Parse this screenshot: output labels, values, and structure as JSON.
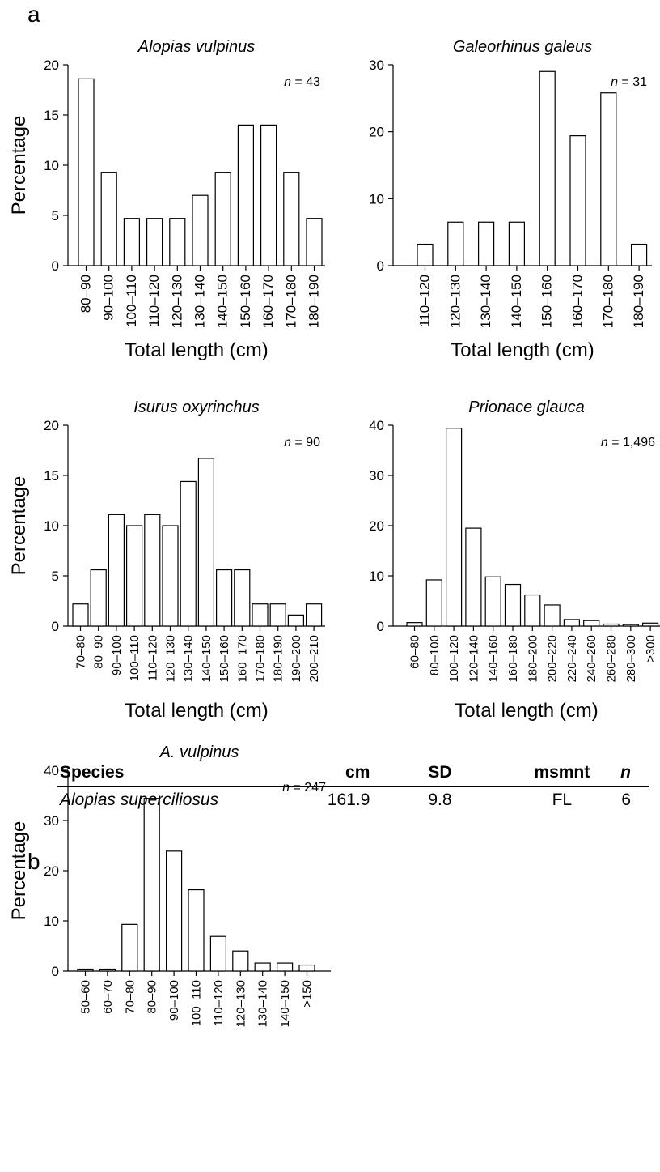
{
  "figure": {
    "panel_a_label": "a",
    "panel_b_label": "b"
  },
  "chart_data": [
    {
      "id": "chart-a1",
      "panel": "a",
      "type": "bar",
      "title": "Alopias vulpinus",
      "n_label": "n = 43",
      "xlabel": "Total length (cm)",
      "ylabel": "Percentage",
      "ylim": [
        0,
        20
      ],
      "yticks": [
        0,
        5,
        10,
        15,
        20
      ],
      "categories": [
        "80–90",
        "90–100",
        "100–110",
        "110–120",
        "120–130",
        "130–140",
        "140–150",
        "150–160",
        "160–170",
        "170–180",
        "180–190"
      ],
      "values": [
        18.6,
        9.3,
        4.7,
        4.7,
        4.7,
        7.0,
        9.3,
        14.0,
        14.0,
        9.3,
        4.7
      ]
    },
    {
      "id": "chart-a2",
      "panel": "a",
      "type": "bar",
      "title": "Galeorhinus galeus",
      "n_label": "n = 31",
      "xlabel": "Total length (cm)",
      "ylabel": "",
      "ylim": [
        0,
        30
      ],
      "yticks": [
        0,
        10,
        20,
        30
      ],
      "categories": [
        "110–120",
        "120–130",
        "130–140",
        "140–150",
        "150–160",
        "160–170",
        "170–180",
        "180–190"
      ],
      "values": [
        3.2,
        6.5,
        6.5,
        6.5,
        29.0,
        19.4,
        25.8,
        3.2
      ]
    },
    {
      "id": "chart-a3",
      "panel": "a",
      "type": "bar",
      "title": "Isurus oxyrinchus",
      "n_label": "n = 90",
      "xlabel": "Total length (cm)",
      "ylabel": "Percentage",
      "ylim": [
        0,
        20
      ],
      "yticks": [
        0,
        5,
        10,
        15,
        20
      ],
      "categories": [
        "70–80",
        "80–90",
        "90–100",
        "100–110",
        "110–120",
        "120–130",
        "130–140",
        "140–150",
        "150–160",
        "160–170",
        "170–180",
        "180–190",
        "190–200",
        "200–210"
      ],
      "values": [
        2.2,
        5.6,
        11.1,
        10.0,
        11.1,
        10.0,
        14.4,
        16.7,
        5.6,
        5.6,
        2.2,
        2.2,
        1.1,
        2.2
      ]
    },
    {
      "id": "chart-a4",
      "panel": "a",
      "type": "bar",
      "title": "Prionace glauca",
      "n_label": "n = 1,496",
      "xlabel": "Total length (cm)",
      "ylabel": "",
      "ylim": [
        0,
        40
      ],
      "yticks": [
        0,
        10,
        20,
        30,
        40
      ],
      "categories": [
        "60–80",
        "80–100",
        "100–120",
        "120–140",
        "140–160",
        "160–180",
        "180–200",
        "200–220",
        "220–240",
        "240–260",
        "260–280",
        "280–300",
        ">300"
      ],
      "values": [
        0.7,
        9.2,
        39.4,
        19.5,
        9.8,
        8.3,
        6.2,
        4.2,
        1.3,
        1.1,
        0.4,
        0.3,
        0.6
      ]
    },
    {
      "id": "chart-b1",
      "panel": "b",
      "type": "bar",
      "title": "A. vulpinus",
      "n_label": "n = 247",
      "xlabel": "",
      "ylabel": "Percentage",
      "ylim": [
        0,
        40
      ],
      "yticks": [
        0,
        10,
        20,
        30,
        40
      ],
      "categories": [
        "50–60",
        "60–70",
        "70–80",
        "80–90",
        "90–100",
        "100–110",
        "110–120",
        "120–130",
        "130–140",
        "140–150",
        ">150"
      ],
      "values": [
        0.4,
        0.4,
        9.3,
        34.4,
        23.9,
        16.2,
        6.9,
        4.0,
        1.6,
        1.6,
        1.2
      ]
    }
  ],
  "table": {
    "headers": {
      "species": "Species",
      "cm": "cm",
      "sd": "SD",
      "msmnt": "msmnt",
      "n": "n"
    },
    "rows": [
      {
        "species": "Alopias superciliosus",
        "cm": "161.9",
        "sd": "9.8",
        "msmnt": "FL",
        "n": "6"
      }
    ]
  }
}
